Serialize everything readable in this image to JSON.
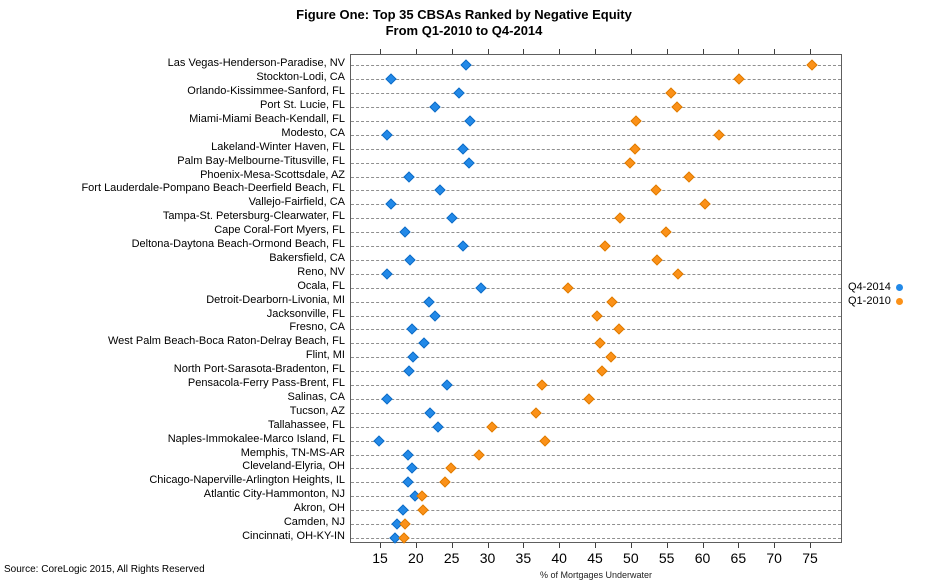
{
  "figure": {
    "title_line1": "Figure One: Top 35 CBSAs Ranked by Negative Equity",
    "title_line2": "From Q1-2010 to Q4-2014",
    "source": "Source: CoreLogic 2015, All Rights Reserved"
  },
  "colors": {
    "q4_2014_fill": "#2289E8",
    "q4_2014_edge": "#0F6DC6",
    "q1_2010_fill": "#FB9118",
    "q1_2010_edge": "#E07C00",
    "row_dash": "#8f8f8f",
    "plot_border": "#5e5e5e"
  },
  "chart_data": {
    "type": "scatter",
    "subtype": "horizontal-dumbbell-dot-plot",
    "title": "Figure One: Top 35 CBSAs Ranked by Negative Equity From Q1-2010 to Q4-2014",
    "xlabel": "% of Mortgages Underwater",
    "ylabel": "",
    "xlim": [
      11,
      80
    ],
    "xticks": [
      15,
      20,
      25,
      30,
      35,
      40,
      45,
      50,
      55,
      60,
      65,
      70,
      75
    ],
    "grid": "horizontal dashed lines per category row",
    "legend_position": "right-outside-middle",
    "categories": [
      "Las Vegas-Henderson-Paradise, NV",
      "Stockton-Lodi, CA",
      "Orlando-Kissimmee-Sanford, FL",
      "Port St. Lucie, FL",
      "Miami-Miami Beach-Kendall, FL",
      "Modesto, CA",
      "Lakeland-Winter Haven, FL",
      "Palm Bay-Melbourne-Titusville, FL",
      "Phoenix-Mesa-Scottsdale, AZ",
      "Fort Lauderdale-Pompano Beach-Deerfield Beach, FL",
      "Vallejo-Fairfield, CA",
      "Tampa-St. Petersburg-Clearwater, FL",
      "Cape Coral-Fort Myers, FL",
      "Deltona-Daytona Beach-Ormond Beach, FL",
      "Bakersfield, CA",
      "Reno, NV",
      "Ocala, FL",
      "Detroit-Dearborn-Livonia, MI",
      "Jacksonville, FL",
      "Fresno, CA",
      "West Palm Beach-Boca Raton-Delray Beach, FL",
      "Flint, MI",
      "North Port-Sarasota-Bradenton, FL",
      "Pensacola-Ferry Pass-Brent, FL",
      "Salinas, CA",
      "Tucson, AZ",
      "Tallahassee, FL",
      "Naples-Immokalee-Marco Island, FL",
      "Memphis, TN-MS-AR",
      "Cleveland-Elyria, OH",
      "Chicago-Naperville-Arlington Heights, IL",
      "Atlantic City-Hammonton, NJ",
      "Akron, OH",
      "Camden, NJ",
      "Cincinnati, OH-KY-IN"
    ],
    "series": [
      {
        "name": "Q4-2014",
        "color": "#2289E8",
        "values": [
          26.8,
          16.4,
          25.9,
          22.5,
          27.4,
          15.8,
          26.4,
          27.3,
          18.9,
          23.2,
          16.4,
          24.9,
          18.3,
          26.5,
          19.0,
          15.9,
          29.0,
          21.7,
          22.5,
          19.3,
          21.0,
          19.4,
          18.9,
          24.2,
          15.9,
          21.9,
          22.9,
          14.7,
          18.8,
          19.3,
          18.7,
          19.8,
          18.0,
          17.2,
          17.0
        ]
      },
      {
        "name": "Q1-2010",
        "color": "#FB9118",
        "values": [
          75.2,
          65.0,
          55.4,
          56.3,
          50.6,
          62.1,
          50.5,
          49.7,
          58.0,
          53.4,
          60.2,
          48.4,
          54.8,
          46.2,
          53.5,
          56.5,
          41.1,
          47.2,
          45.2,
          48.2,
          45.5,
          47.1,
          45.9,
          37.4,
          44.0,
          36.6,
          30.5,
          37.9,
          28.7,
          24.7,
          23.9,
          20.7,
          20.8,
          18.3,
          18.2
        ]
      }
    ]
  }
}
